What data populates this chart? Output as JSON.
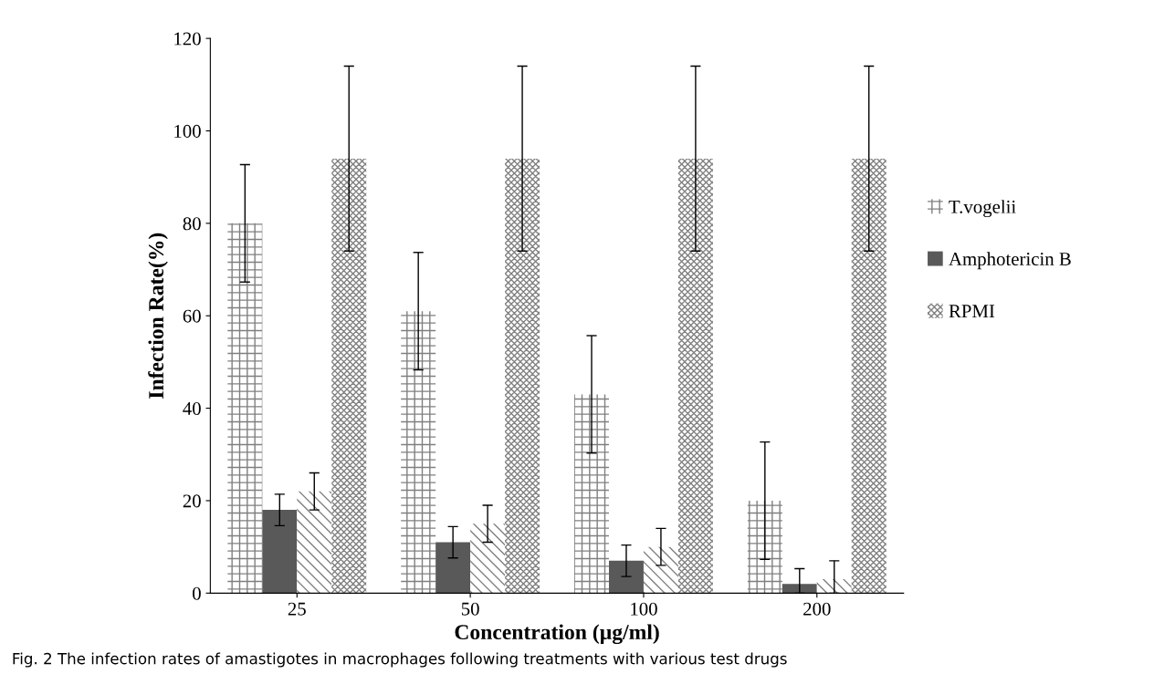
{
  "chart_data": {
    "type": "bar",
    "xlabel": "Concentration (µg/ml)",
    "ylabel": "Infection Rate(%)",
    "categories": [
      "25",
      "50",
      "100",
      "200"
    ],
    "ylim": [
      0,
      120
    ],
    "yticks": [
      0,
      20,
      40,
      60,
      80,
      100,
      120
    ],
    "grid": false,
    "legend": "right",
    "annotations": [
      "Fig. 2 The infection rates of amastigotes in macrophages following treatments with various test drugs"
    ],
    "series": [
      {
        "name": "T.vogelii",
        "color": "#7f7f7f",
        "values": [
          80,
          61,
          43,
          20
        ],
        "errors": [
          12.7,
          12.7,
          12.7,
          12.7
        ]
      },
      {
        "name": "Amphotericin B",
        "color": "#595959",
        "values": [
          18,
          11,
          7,
          2
        ],
        "errors": [
          3.4,
          3.4,
          3.4,
          [
            0,
            5.3
          ]
        ]
      },
      {
        "color": "#7f7f7f",
        "values": [
          22,
          15,
          10,
          3
        ],
        "errors": [
          4,
          4,
          4,
          [
            0,
            7
          ]
        ]
      },
      {
        "name": "RPMI",
        "color": "#808080",
        "values": [
          94,
          94,
          94,
          94
        ],
        "errors": [
          20,
          20,
          20,
          20
        ]
      }
    ]
  }
}
